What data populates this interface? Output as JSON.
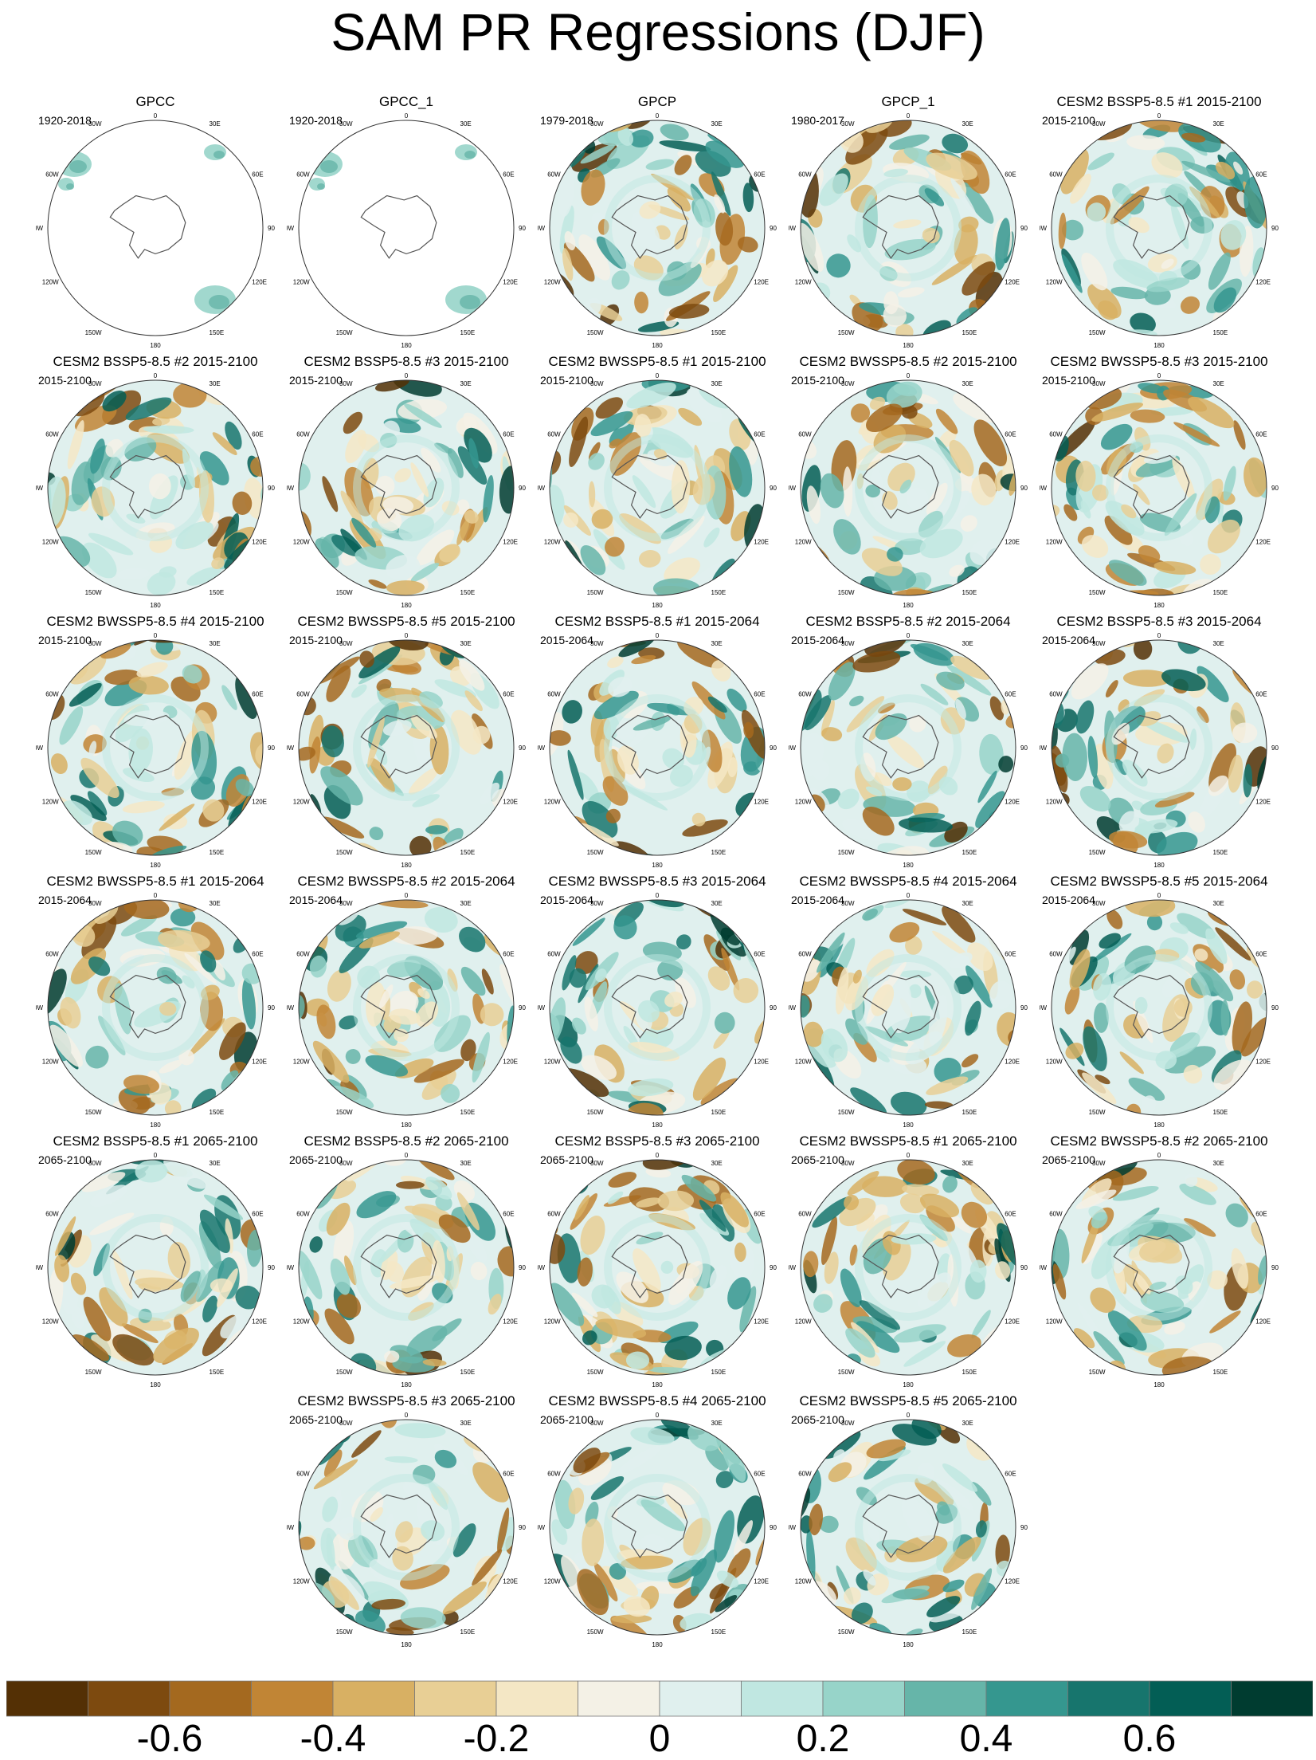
{
  "figure": {
    "title": "SAM PR Regressions (DJF)"
  },
  "map_labels": {
    "top": "0",
    "top_right": "30E",
    "top_left": "30W",
    "right_upper": "60E",
    "left_upper": "60W",
    "right": "90E",
    "left": "90W",
    "right_lower": "120E",
    "left_lower": "120W",
    "bottom_right": "150E",
    "bottom_left": "150W",
    "bottom": "180"
  },
  "panels": [
    {
      "title": "GPCC",
      "period": "1920-2018",
      "kind": "obs_land",
      "seed": 1
    },
    {
      "title": "GPCC_1",
      "period": "1920-2018",
      "kind": "obs_land",
      "seed": 2
    },
    {
      "title": "GPCP",
      "period": "1979-2018",
      "kind": "field",
      "seed": 3
    },
    {
      "title": "GPCP_1",
      "period": "1980-2017",
      "kind": "field",
      "seed": 4
    },
    {
      "title": "CESM2 BSSP5-8.5 #1 2015-2100",
      "period": "2015-2100",
      "kind": "field",
      "seed": 5
    },
    {
      "title": "CESM2 BSSP5-8.5 #2 2015-2100",
      "period": "2015-2100",
      "kind": "field",
      "seed": 6
    },
    {
      "title": "CESM2 BSSP5-8.5 #3 2015-2100",
      "period": "2015-2100",
      "kind": "field",
      "seed": 7
    },
    {
      "title": "CESM2 BWSSP5-8.5 #1 2015-2100",
      "period": "2015-2100",
      "kind": "field",
      "seed": 8
    },
    {
      "title": "CESM2 BWSSP5-8.5 #2 2015-2100",
      "period": "2015-2100",
      "kind": "field",
      "seed": 9
    },
    {
      "title": "CESM2 BWSSP5-8.5 #3 2015-2100",
      "period": "2015-2100",
      "kind": "field",
      "seed": 10
    },
    {
      "title": "CESM2 BWSSP5-8.5 #4 2015-2100",
      "period": "2015-2100",
      "kind": "field",
      "seed": 11
    },
    {
      "title": "CESM2 BWSSP5-8.5 #5 2015-2100",
      "period": "2015-2100",
      "kind": "field",
      "seed": 12
    },
    {
      "title": "CESM2 BSSP5-8.5 #1 2015-2064",
      "period": "2015-2064",
      "kind": "field",
      "seed": 13
    },
    {
      "title": "CESM2 BSSP5-8.5 #2 2015-2064",
      "period": "2015-2064",
      "kind": "field",
      "seed": 14
    },
    {
      "title": "CESM2 BSSP5-8.5 #3 2015-2064",
      "period": "2015-2064",
      "kind": "field",
      "seed": 15
    },
    {
      "title": "CESM2 BWSSP5-8.5 #1 2015-2064",
      "period": "2015-2064",
      "kind": "field",
      "seed": 16
    },
    {
      "title": "CESM2 BWSSP5-8.5 #2 2015-2064",
      "period": "2015-2064",
      "kind": "field",
      "seed": 17
    },
    {
      "title": "CESM2 BWSSP5-8.5 #3 2015-2064",
      "period": "2015-2064",
      "kind": "field",
      "seed": 18
    },
    {
      "title": "CESM2 BWSSP5-8.5 #4 2015-2064",
      "period": "2015-2064",
      "kind": "field",
      "seed": 19
    },
    {
      "title": "CESM2 BWSSP5-8.5 #5 2015-2064",
      "period": "2015-2064",
      "kind": "field",
      "seed": 20
    },
    {
      "title": "CESM2 BSSP5-8.5 #1 2065-2100",
      "period": "2065-2100",
      "kind": "field",
      "seed": 21
    },
    {
      "title": "CESM2 BSSP5-8.5 #2 2065-2100",
      "period": "2065-2100",
      "kind": "field",
      "seed": 22
    },
    {
      "title": "CESM2 BSSP5-8.5 #3 2065-2100",
      "period": "2065-2100",
      "kind": "field",
      "seed": 23
    },
    {
      "title": "CESM2 BWSSP5-8.5 #1 2065-2100",
      "period": "2065-2100",
      "kind": "field",
      "seed": 24
    },
    {
      "title": "CESM2 BWSSP5-8.5 #2 2065-2100",
      "period": "2065-2100",
      "kind": "field",
      "seed": 25
    },
    {
      "title": "CESM2 BWSSP5-8.5 #3 2065-2100",
      "period": "2065-2100",
      "kind": "field",
      "seed": 26
    },
    {
      "title": "CESM2 BWSSP5-8.5 #4 2065-2100",
      "period": "2065-2100",
      "kind": "field",
      "seed": 27
    },
    {
      "title": "CESM2 BWSSP5-8.5 #5 2065-2100",
      "period": "2065-2100",
      "kind": "field",
      "seed": 28
    }
  ],
  "colorbar": {
    "colors": [
      "#543005",
      "#7d4a0f",
      "#a4691f",
      "#c18535",
      "#d8b063",
      "#e8cf95",
      "#f4e7c5",
      "#f4f1e6",
      "#e0f0ee",
      "#c0e7e1",
      "#97d4c9",
      "#66b5a9",
      "#35978f",
      "#17756d",
      "#035e55",
      "#003c30"
    ],
    "tick_labels": [
      "-0.6",
      "-0.4",
      "-0.2",
      "0",
      "0.2",
      "0.4",
      "0.6"
    ],
    "tick_values": [
      -0.6,
      -0.4,
      -0.2,
      0,
      0.2,
      0.4,
      0.6
    ],
    "min": -0.8,
    "max": 0.8
  }
}
